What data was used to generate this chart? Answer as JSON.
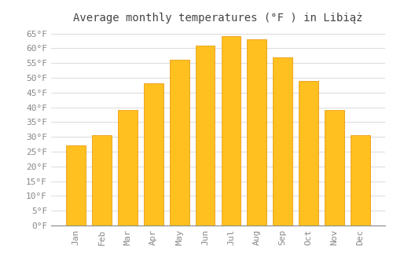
{
  "title": "Average monthly temperatures (°F ) in Libiąż",
  "months": [
    "Jan",
    "Feb",
    "Mar",
    "Apr",
    "May",
    "Jun",
    "Jul",
    "Aug",
    "Sep",
    "Oct",
    "Nov",
    "Dec"
  ],
  "values": [
    27,
    30.5,
    39,
    48,
    56,
    61,
    64,
    63,
    57,
    49,
    39,
    30.5
  ],
  "bar_color_top": "#FFC020",
  "bar_color_bottom": "#FFA020",
  "bar_edge_color": "#E89000",
  "background_color": "#FFFFFF",
  "grid_color": "#CCCCCC",
  "ylim": [
    0,
    67
  ],
  "yticks": [
    0,
    5,
    10,
    15,
    20,
    25,
    30,
    35,
    40,
    45,
    50,
    55,
    60,
    65
  ],
  "ylabel_suffix": "°F",
  "title_fontsize": 10,
  "tick_fontsize": 8,
  "font_family": "monospace"
}
